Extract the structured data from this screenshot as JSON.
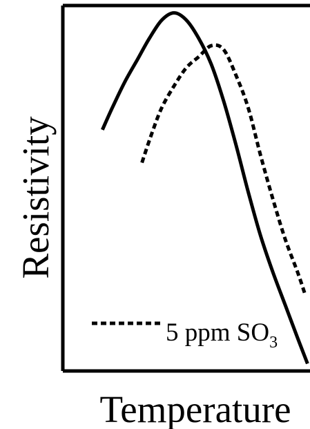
{
  "chart_data": {
    "type": "line",
    "xlabel": "Temperature",
    "ylabel": "Resistivity",
    "xlim": [
      0,
      100
    ],
    "ylim": [
      0,
      100
    ],
    "grid": false,
    "ticks": false,
    "legend_position": "bottom-left",
    "series": [
      {
        "style": "solid",
        "color": "#000000",
        "x": [
          16,
          20,
          25,
          30,
          35,
          40,
          45,
          50,
          55,
          60,
          65,
          70,
          75,
          80,
          85,
          90,
          95,
          99
        ],
        "y": [
          66,
          72,
          79,
          85,
          91,
          96,
          98,
          96,
          91,
          84,
          74,
          62,
          49,
          37,
          27,
          18,
          9,
          2
        ]
      },
      {
        "name": "5 ppm SO",
        "subscript": "3",
        "style": "dotted",
        "color": "#000000",
        "x": [
          32,
          36,
          40,
          45,
          50,
          55,
          60,
          65,
          70,
          75,
          80,
          85,
          90,
          95,
          98
        ],
        "y": [
          57,
          65,
          72,
          78,
          83,
          86,
          89,
          88,
          81,
          72,
          59,
          47,
          36,
          27,
          21
        ]
      }
    ]
  }
}
